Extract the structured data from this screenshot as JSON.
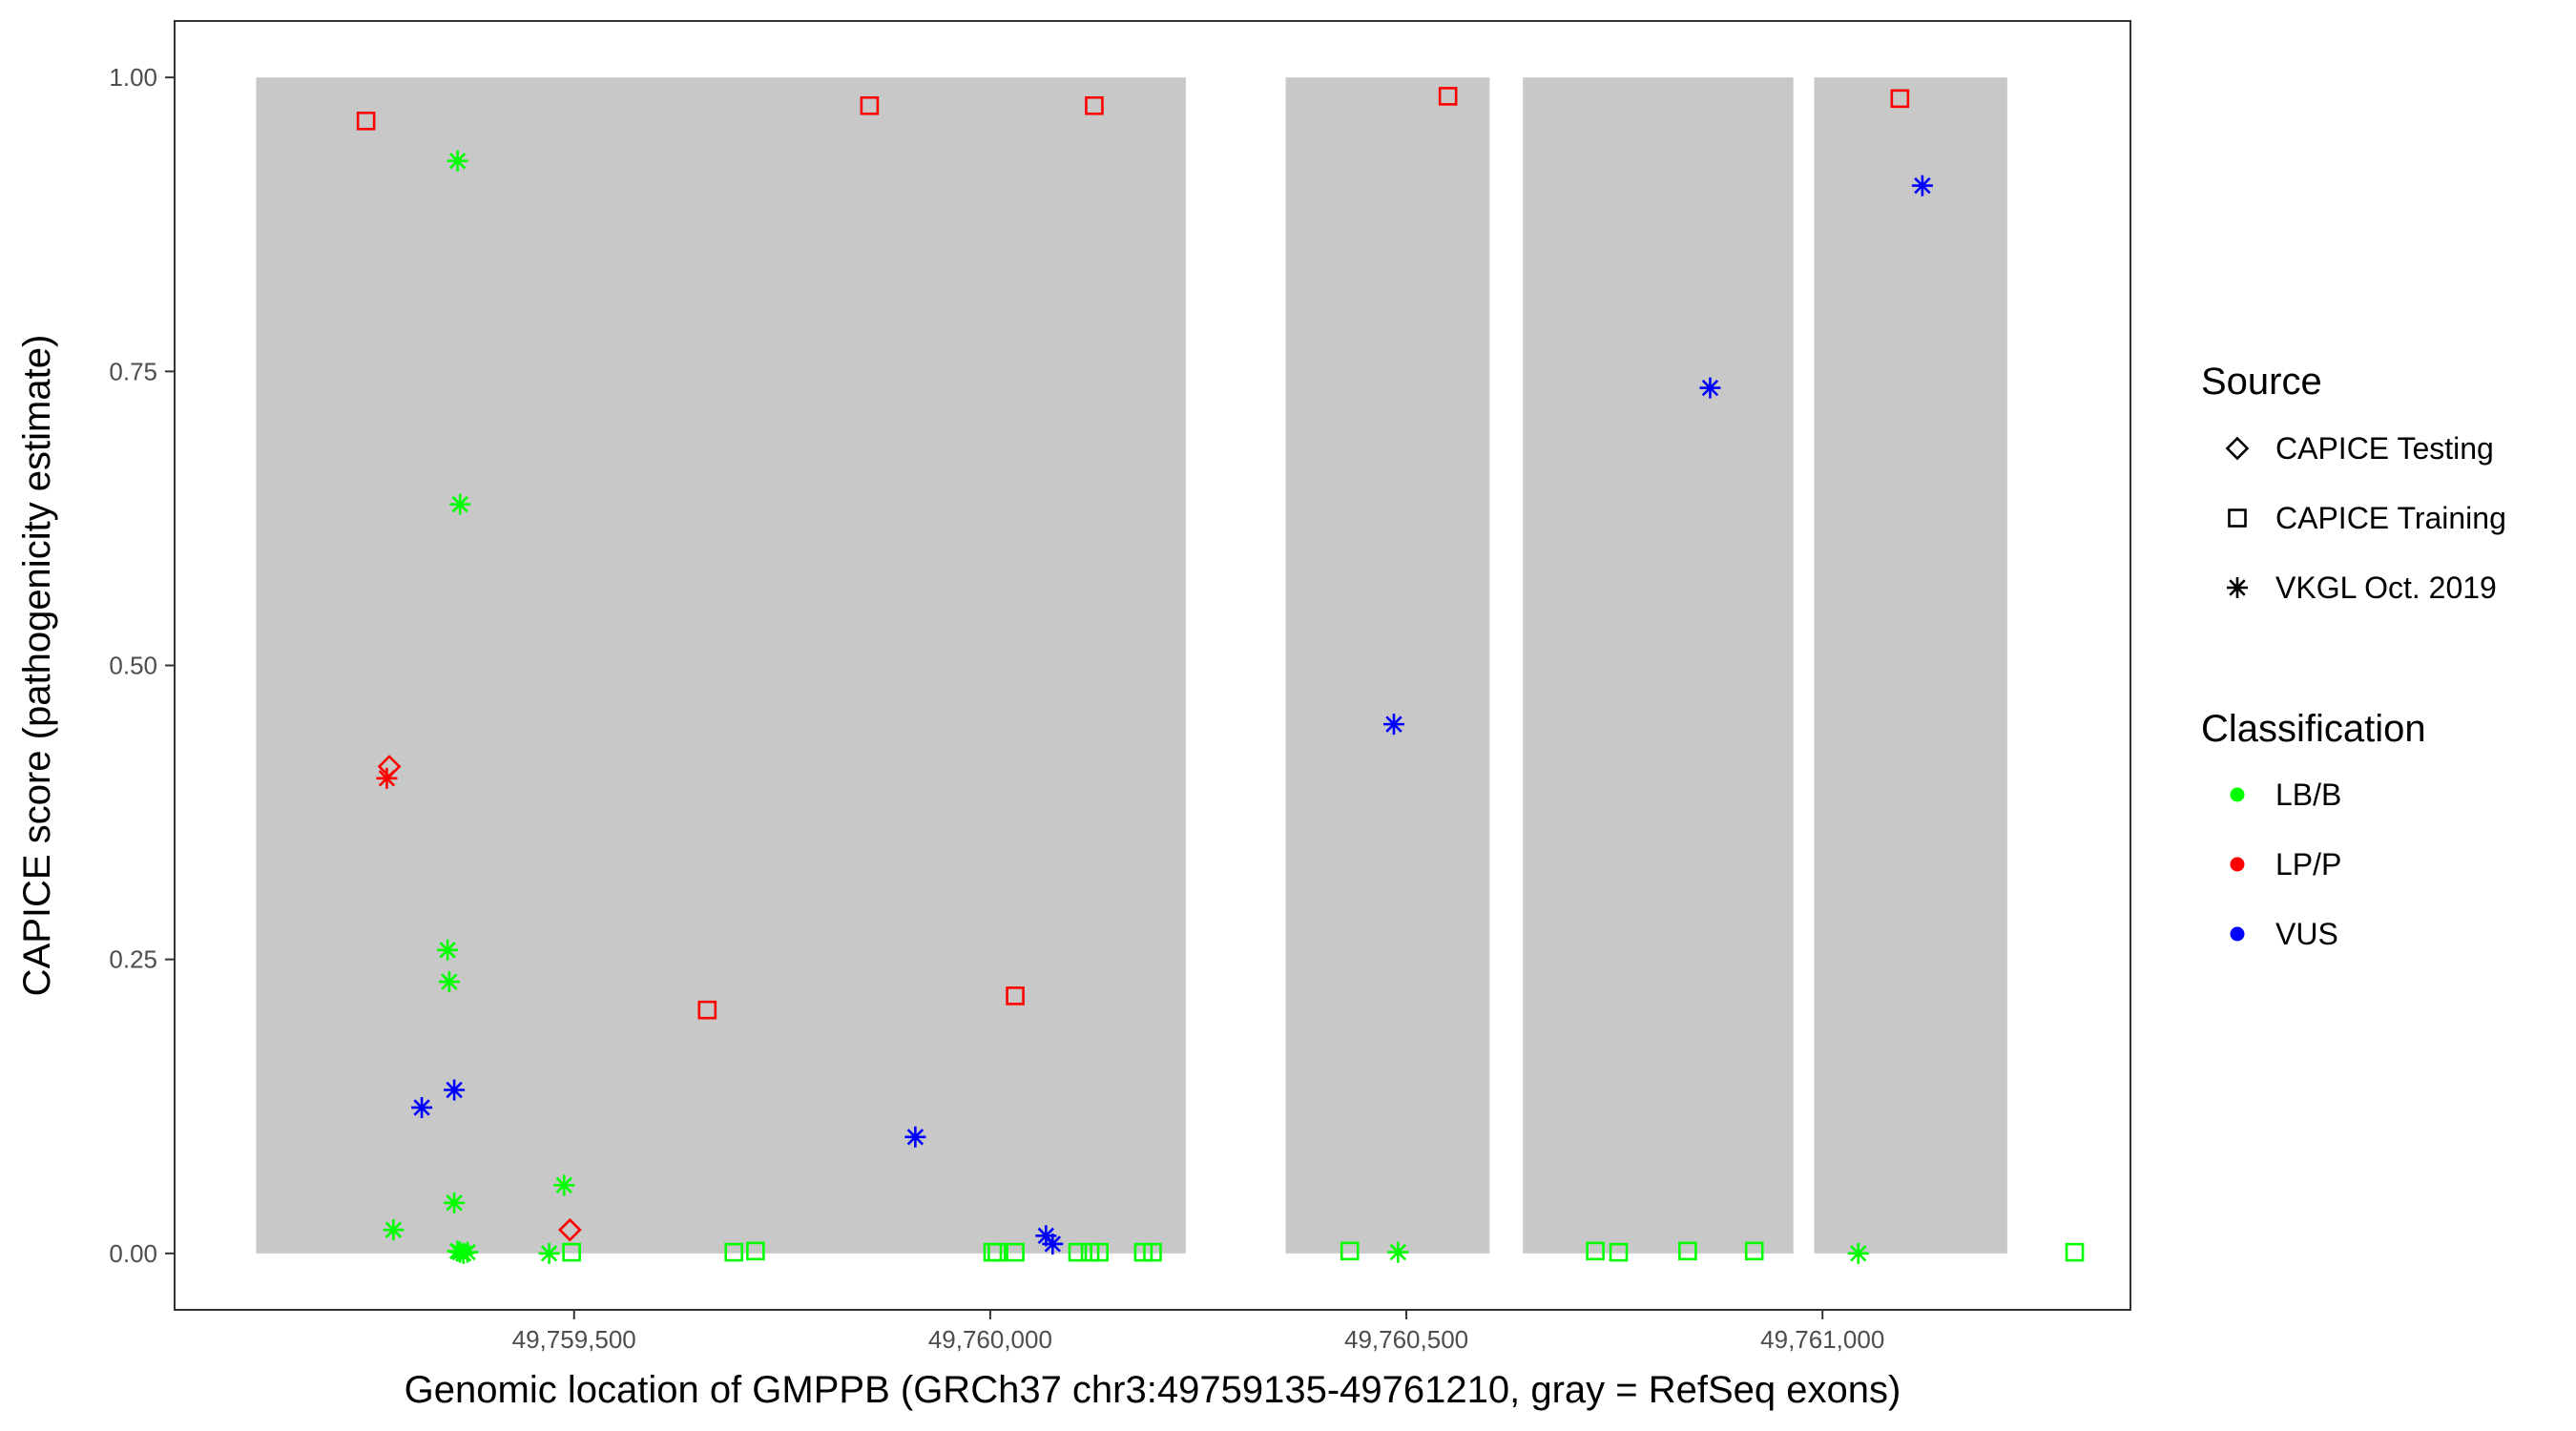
{
  "chart_data": {
    "type": "scatter",
    "xlabel": "Genomic location of GMPPB (GRCh37 chr3:49759135-49761210, gray = RefSeq exons)",
    "ylabel": "CAPICE score (pathogenicity estimate)",
    "xlim": [
      49759020,
      49761370
    ],
    "ylim": [
      -0.048,
      1.048
    ],
    "x_ticks": [
      49759500,
      49760000,
      49760500,
      49761000
    ],
    "x_tick_labels": [
      "49,759,500",
      "49,760,000",
      "49,760,500",
      "49,761,000"
    ],
    "y_ticks": [
      0,
      0.25,
      0.5,
      0.75,
      1.0
    ],
    "y_tick_labels": [
      "0.00",
      "0.25",
      "0.50",
      "0.75",
      "1.00"
    ],
    "grid": false,
    "legend_placement": "right",
    "exons": [
      {
        "start": 49759118,
        "end": 49760235
      },
      {
        "start": 49760355,
        "end": 49760600
      },
      {
        "start": 49760640,
        "end": 49760965
      },
      {
        "start": 49760990,
        "end": 49761222
      }
    ],
    "exon_color": "#c8c8c8",
    "legend": {
      "source": {
        "title": "Source",
        "items": [
          {
            "label": "CAPICE Testing",
            "shape": "diamond"
          },
          {
            "label": "CAPICE Training",
            "shape": "square"
          },
          {
            "label": "VKGL Oct. 2019",
            "shape": "asterisk"
          }
        ]
      },
      "classification": {
        "title": "Classification",
        "items": [
          {
            "label": "LB/B",
            "color": "#00ff00"
          },
          {
            "label": "LP/P",
            "color": "#ff0000"
          },
          {
            "label": "VUS",
            "color": "#0000ff"
          }
        ]
      }
    },
    "points": [
      {
        "x": 49759250,
        "y": 0.963,
        "source": "CAPICE Training",
        "class": "LP/P"
      },
      {
        "x": 49759855,
        "y": 0.976,
        "source": "CAPICE Training",
        "class": "LP/P"
      },
      {
        "x": 49760125,
        "y": 0.976,
        "source": "CAPICE Training",
        "class": "LP/P"
      },
      {
        "x": 49760550,
        "y": 0.984,
        "source": "CAPICE Training",
        "class": "LP/P"
      },
      {
        "x": 49761093,
        "y": 0.982,
        "source": "CAPICE Training",
        "class": "LP/P"
      },
      {
        "x": 49759660,
        "y": 0.207,
        "source": "CAPICE Training",
        "class": "LP/P"
      },
      {
        "x": 49760030,
        "y": 0.219,
        "source": "CAPICE Training",
        "class": "LP/P"
      },
      {
        "x": 49759497,
        "y": 0.001,
        "source": "CAPICE Training",
        "class": "LB/B"
      },
      {
        "x": 49759692,
        "y": 0.001,
        "source": "CAPICE Training",
        "class": "LB/B"
      },
      {
        "x": 49759718,
        "y": 0.002,
        "source": "CAPICE Training",
        "class": "LB/B"
      },
      {
        "x": 49760003,
        "y": 0.001,
        "source": "CAPICE Training",
        "class": "LB/B"
      },
      {
        "x": 49760008,
        "y": 0.001,
        "source": "CAPICE Training",
        "class": "LB/B"
      },
      {
        "x": 49760030,
        "y": 0.001,
        "source": "CAPICE Training",
        "class": "LB/B"
      },
      {
        "x": 49760105,
        "y": 0.001,
        "source": "CAPICE Training",
        "class": "LB/B"
      },
      {
        "x": 49760120,
        "y": 0.001,
        "source": "CAPICE Training",
        "class": "LB/B"
      },
      {
        "x": 49760131,
        "y": 0.001,
        "source": "CAPICE Training",
        "class": "LB/B"
      },
      {
        "x": 49760184,
        "y": 0.001,
        "source": "CAPICE Training",
        "class": "LB/B"
      },
      {
        "x": 49760195,
        "y": 0.001,
        "source": "CAPICE Training",
        "class": "LB/B"
      },
      {
        "x": 49760432,
        "y": 0.002,
        "source": "CAPICE Training",
        "class": "LB/B"
      },
      {
        "x": 49760727,
        "y": 0.002,
        "source": "CAPICE Training",
        "class": "LB/B"
      },
      {
        "x": 49760755,
        "y": 0.001,
        "source": "CAPICE Training",
        "class": "LB/B"
      },
      {
        "x": 49760838,
        "y": 0.002,
        "source": "CAPICE Training",
        "class": "LB/B"
      },
      {
        "x": 49760918,
        "y": 0.002,
        "source": "CAPICE Training",
        "class": "LB/B"
      },
      {
        "x": 49761303,
        "y": 0.001,
        "source": "CAPICE Training",
        "class": "LB/B"
      },
      {
        "x": 49759278,
        "y": 0.414,
        "source": "CAPICE Testing",
        "class": "LP/P"
      },
      {
        "x": 49759495,
        "y": 0.02,
        "source": "CAPICE Testing",
        "class": "LP/P"
      },
      {
        "x": 49759360,
        "y": 0.929,
        "source": "VKGL Oct. 2019",
        "class": "LB/B"
      },
      {
        "x": 49759363,
        "y": 0.637,
        "source": "VKGL Oct. 2019",
        "class": "LB/B"
      },
      {
        "x": 49759348,
        "y": 0.258,
        "source": "VKGL Oct. 2019",
        "class": "LB/B"
      },
      {
        "x": 49759350,
        "y": 0.231,
        "source": "VKGL Oct. 2019",
        "class": "LB/B"
      },
      {
        "x": 49759356,
        "y": 0.043,
        "source": "VKGL Oct. 2019",
        "class": "LB/B"
      },
      {
        "x": 49759283,
        "y": 0.02,
        "source": "VKGL Oct. 2019",
        "class": "LB/B"
      },
      {
        "x": 49759488,
        "y": 0.058,
        "source": "VKGL Oct. 2019",
        "class": "LB/B"
      },
      {
        "x": 49759360,
        "y": 0.002,
        "source": "VKGL Oct. 2019",
        "class": "LB/B"
      },
      {
        "x": 49759363,
        "y": 0.001,
        "source": "VKGL Oct. 2019",
        "class": "LB/B"
      },
      {
        "x": 49759367,
        "y": 0.0,
        "source": "VKGL Oct. 2019",
        "class": "LB/B"
      },
      {
        "x": 49759372,
        "y": 0.001,
        "source": "VKGL Oct. 2019",
        "class": "LB/B"
      },
      {
        "x": 49759470,
        "y": 0.0,
        "source": "VKGL Oct. 2019",
        "class": "LB/B"
      },
      {
        "x": 49760490,
        "y": 0.001,
        "source": "VKGL Oct. 2019",
        "class": "LB/B"
      },
      {
        "x": 49761043,
        "y": 0.0,
        "source": "VKGL Oct. 2019",
        "class": "LB/B"
      },
      {
        "x": 49759275,
        "y": 0.404,
        "source": "VKGL Oct. 2019",
        "class": "LP/P"
      },
      {
        "x": 49759317,
        "y": 0.124,
        "source": "VKGL Oct. 2019",
        "class": "VUS"
      },
      {
        "x": 49759356,
        "y": 0.139,
        "source": "VKGL Oct. 2019",
        "class": "VUS"
      },
      {
        "x": 49759910,
        "y": 0.099,
        "source": "VKGL Oct. 2019",
        "class": "VUS"
      },
      {
        "x": 49760067,
        "y": 0.015,
        "source": "VKGL Oct. 2019",
        "class": "VUS"
      },
      {
        "x": 49760075,
        "y": 0.008,
        "source": "VKGL Oct. 2019",
        "class": "VUS"
      },
      {
        "x": 49760485,
        "y": 0.45,
        "source": "VKGL Oct. 2019",
        "class": "VUS"
      },
      {
        "x": 49760865,
        "y": 0.736,
        "source": "VKGL Oct. 2019",
        "class": "VUS"
      },
      {
        "x": 49761120,
        "y": 0.908,
        "source": "VKGL Oct. 2019",
        "class": "VUS"
      }
    ]
  }
}
